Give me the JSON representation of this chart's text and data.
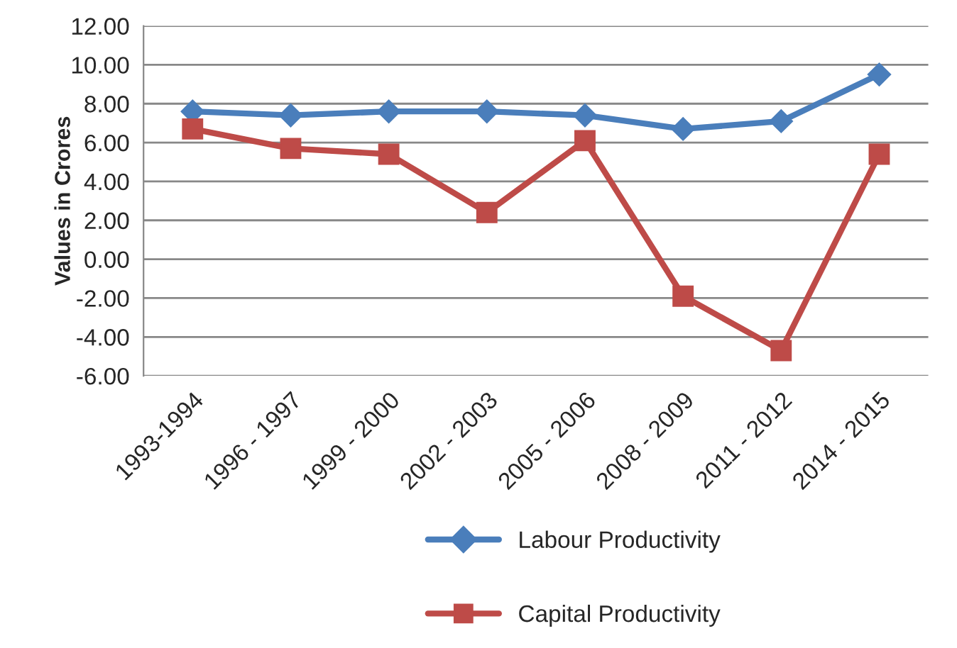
{
  "chart_data": {
    "type": "line",
    "ylabel": "Values in Crores",
    "categories": [
      "1993-1994",
      "1996 - 1997",
      "1999 - 2000",
      "2002 - 2003",
      "2005 - 2006",
      "2008 - 2009",
      "2011 - 2012",
      "2014 - 2015"
    ],
    "series": [
      {
        "name": "Labour Productivity",
        "color": "#4a7ebb",
        "marker": "diamond",
        "values": [
          7.6,
          7.4,
          7.6,
          7.6,
          7.4,
          6.7,
          7.1,
          9.5
        ]
      },
      {
        "name": "Capital Productivity",
        "color": "#be4b48",
        "marker": "square",
        "values": [
          6.7,
          5.7,
          5.4,
          2.4,
          6.1,
          -1.9,
          -4.7,
          5.4
        ]
      }
    ],
    "ylim": [
      -6,
      12
    ],
    "yticks": [
      {
        "value": -6,
        "label": "-6.00"
      },
      {
        "value": -4,
        "label": "-4.00"
      },
      {
        "value": -2,
        "label": "-2.00"
      },
      {
        "value": 0,
        "label": "0.00"
      },
      {
        "value": 2,
        "label": "2.00"
      },
      {
        "value": 4,
        "label": "4.00"
      },
      {
        "value": 6,
        "label": "6.00"
      },
      {
        "value": 8,
        "label": "8.00"
      },
      {
        "value": 10,
        "label": "10.00"
      },
      {
        "value": 12,
        "label": "12.00"
      }
    ],
    "grid": "y",
    "legend": "bottom",
    "line_style": "solid"
  }
}
